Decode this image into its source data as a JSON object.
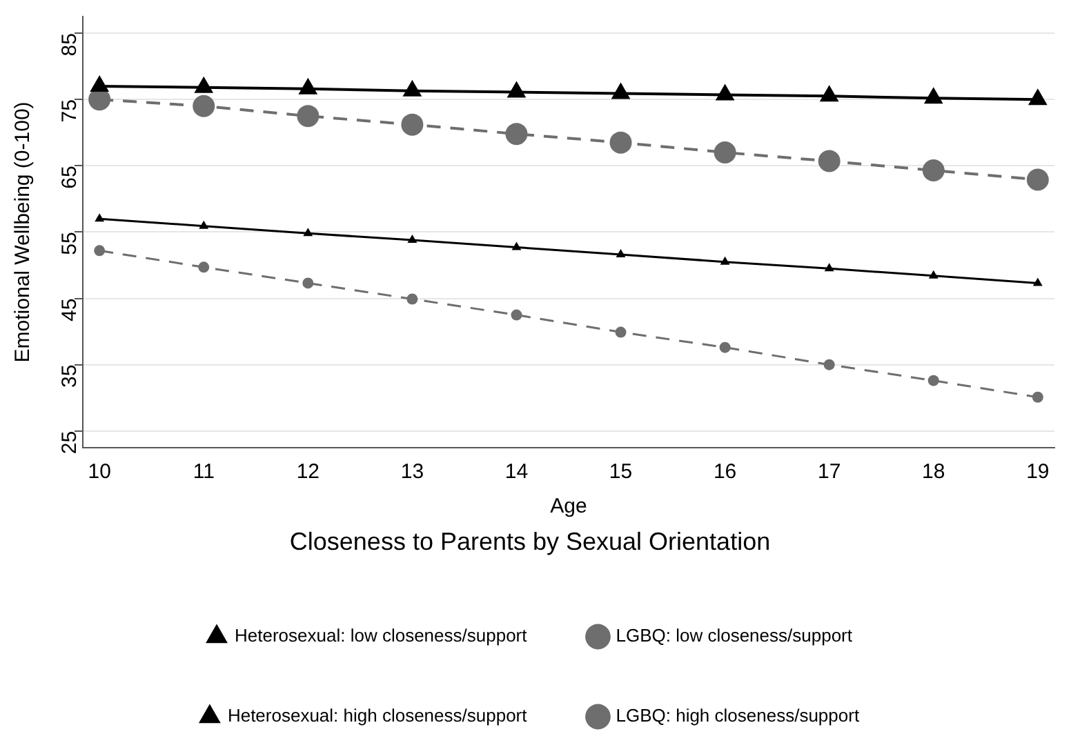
{
  "chart_data": {
    "type": "line",
    "xlabel": "Age",
    "ylabel": "Emotional Wellbeing (0-100)",
    "legend_title": "Closeness to Parents by Sexual Orientation",
    "legend": "bottom",
    "grid": "y",
    "x": [
      10,
      11,
      12,
      13,
      14,
      15,
      16,
      17,
      18,
      19
    ],
    "xlim": [
      9.84,
      19.16
    ],
    "xticks": [
      10,
      11,
      12,
      13,
      14,
      15,
      16,
      17,
      18,
      19
    ],
    "ylim": [
      22.5,
      87.5
    ],
    "yticks": [
      25,
      35,
      45,
      55,
      65,
      75,
      85
    ],
    "series": [
      {
        "name": "Heterosexual: low closeness/support",
        "color": "#000000",
        "marker": "triangle",
        "line_style": "solid",
        "values": [
          57.0,
          55.9,
          54.8,
          53.8,
          52.7,
          51.6,
          50.5,
          49.5,
          48.4,
          47.3
        ]
      },
      {
        "name": "LGBQ: low closeness/support",
        "color": "#6e6e6e",
        "marker": "circle",
        "line_style": "dashed",
        "values": [
          52.2,
          49.7,
          47.3,
          44.9,
          42.5,
          39.9,
          37.6,
          35.0,
          32.6,
          30.1
        ]
      },
      {
        "name": "Heterosexual: high closeness/support",
        "color": "#000000",
        "marker": "triangle",
        "line_style": "solid",
        "values": [
          77.0,
          76.8,
          76.6,
          76.3,
          76.1,
          75.9,
          75.7,
          75.5,
          75.2,
          75.0
        ]
      },
      {
        "name": "LGBQ: high closeness/support",
        "color": "#6e6e6e",
        "marker": "circle",
        "line_style": "dashed",
        "values": [
          75.0,
          74.0,
          72.5,
          71.2,
          69.8,
          68.5,
          67.0,
          65.7,
          64.3,
          62.9
        ]
      }
    ]
  }
}
